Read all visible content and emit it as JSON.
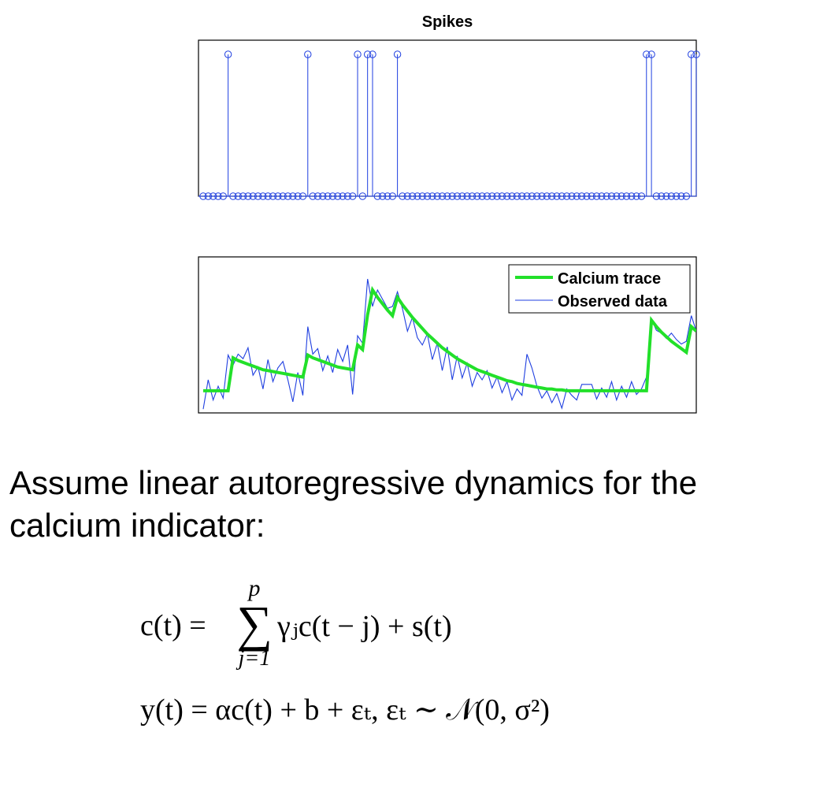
{
  "chart_data": [
    {
      "type": "stem",
      "title": "Spikes",
      "n": 100,
      "baseline": 0,
      "spike_value": 1,
      "spike_indices": [
        5,
        21,
        31,
        33,
        34,
        39,
        89,
        90,
        98,
        99
      ],
      "ylim": [
        0,
        1.1
      ],
      "color": "#1f3fe0"
    },
    {
      "type": "line",
      "legend": {
        "position": "top-right",
        "entries": [
          "Calcium trace",
          "Observed data"
        ]
      },
      "ylim": [
        -0.15,
        1.4
      ],
      "series": [
        {
          "name": "Calcium trace",
          "color": "#22e02a",
          "x": [
            0,
            5,
            6,
            7,
            8,
            9,
            10,
            11,
            12,
            13,
            14,
            15,
            16,
            17,
            18,
            19,
            20,
            21,
            22,
            23,
            24,
            25,
            26,
            27,
            28,
            29,
            30,
            31,
            32,
            33,
            34,
            35,
            36,
            37,
            38,
            39,
            40,
            41,
            42,
            43,
            44,
            45,
            46,
            47,
            48,
            49,
            50,
            51,
            52,
            53,
            54,
            55,
            56,
            57,
            58,
            59,
            60,
            61,
            62,
            63,
            64,
            65,
            66,
            67,
            68,
            69,
            70,
            71,
            72,
            73,
            74,
            75,
            76,
            77,
            78,
            79,
            80,
            81,
            82,
            83,
            84,
            85,
            86,
            87,
            88,
            89,
            90,
            91,
            92,
            93,
            94,
            95,
            96,
            97,
            98,
            99
          ],
          "values": [
            0.1,
            0.1,
            0.46,
            0.43,
            0.41,
            0.39,
            0.37,
            0.35,
            0.33,
            0.32,
            0.31,
            0.3,
            0.29,
            0.28,
            0.27,
            0.26,
            0.25,
            0.49,
            0.46,
            0.44,
            0.42,
            0.4,
            0.38,
            0.36,
            0.35,
            0.34,
            0.33,
            0.6,
            0.55,
            0.93,
            1.2,
            1.12,
            1.05,
            0.98,
            0.92,
            1.12,
            1.04,
            0.97,
            0.9,
            0.84,
            0.78,
            0.72,
            0.67,
            0.62,
            0.57,
            0.53,
            0.49,
            0.45,
            0.42,
            0.39,
            0.36,
            0.33,
            0.31,
            0.29,
            0.27,
            0.25,
            0.23,
            0.21,
            0.2,
            0.18,
            0.17,
            0.16,
            0.15,
            0.14,
            0.13,
            0.12,
            0.12,
            0.11,
            0.11,
            0.1,
            0.1,
            0.1,
            0.1,
            0.1,
            0.1,
            0.1,
            0.1,
            0.1,
            0.1,
            0.1,
            0.1,
            0.1,
            0.1,
            0.1,
            0.1,
            0.1,
            0.87,
            0.8,
            0.74,
            0.69,
            0.64,
            0.6,
            0.56,
            0.52,
            0.8,
            0.75
          ]
        },
        {
          "name": "Observed data",
          "color": "#1f3fe0",
          "x": [
            0,
            1,
            2,
            3,
            4,
            5,
            6,
            7,
            8,
            9,
            10,
            11,
            12,
            13,
            14,
            15,
            16,
            17,
            18,
            19,
            20,
            21,
            22,
            23,
            24,
            25,
            26,
            27,
            28,
            29,
            30,
            31,
            32,
            33,
            34,
            35,
            36,
            37,
            38,
            39,
            40,
            41,
            42,
            43,
            44,
            45,
            46,
            47,
            48,
            49,
            50,
            51,
            52,
            53,
            54,
            55,
            56,
            57,
            58,
            59,
            60,
            61,
            62,
            63,
            64,
            65,
            66,
            67,
            68,
            69,
            70,
            71,
            72,
            73,
            74,
            75,
            76,
            77,
            78,
            79,
            80,
            81,
            82,
            83,
            84,
            85,
            86,
            87,
            88,
            89,
            90,
            91,
            92,
            93,
            94,
            95,
            96,
            97,
            98,
            99
          ],
          "values": [
            -0.1,
            0.22,
            0.0,
            0.15,
            0.02,
            0.49,
            0.38,
            0.5,
            0.45,
            0.57,
            0.27,
            0.36,
            0.12,
            0.44,
            0.2,
            0.35,
            0.42,
            0.22,
            -0.02,
            0.3,
            0.05,
            0.8,
            0.5,
            0.56,
            0.32,
            0.48,
            0.3,
            0.55,
            0.42,
            0.6,
            0.06,
            0.7,
            0.62,
            1.32,
            1.02,
            1.2,
            1.1,
            1.0,
            1.02,
            1.18,
            1.0,
            0.75,
            0.9,
            0.68,
            0.6,
            0.72,
            0.44,
            0.62,
            0.32,
            0.58,
            0.22,
            0.48,
            0.24,
            0.4,
            0.15,
            0.3,
            0.22,
            0.32,
            0.13,
            0.25,
            0.08,
            0.2,
            0.0,
            0.12,
            0.05,
            0.5,
            0.35,
            0.15,
            0.02,
            0.1,
            -0.03,
            0.07,
            -0.09,
            0.12,
            0.05,
            0.0,
            0.17,
            0.17,
            0.17,
            0.01,
            0.13,
            0.03,
            0.2,
            0.0,
            0.15,
            0.03,
            0.2,
            0.06,
            0.12,
            0.25,
            0.88,
            0.76,
            0.73,
            0.67,
            0.73,
            0.66,
            0.61,
            0.64,
            0.92,
            0.75
          ]
        }
      ]
    }
  ],
  "caption": "Assume linear autoregressive dynamics for the calcium indicator:",
  "equations": {
    "eq1_lhs": "c(t) =",
    "sum_upper": "p",
    "sum_symbol": "∑",
    "sum_lower": "j=1",
    "eq1_rhs": "γⱼc(t − j) + s(t)",
    "eq2": "y(t) = αc(t) + b + εₜ,    εₜ ∼ 𝒩(0, σ²)"
  }
}
